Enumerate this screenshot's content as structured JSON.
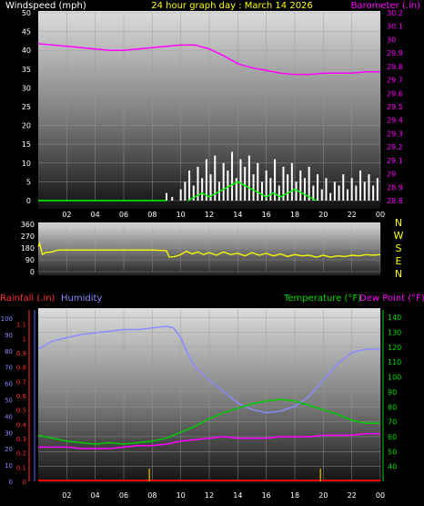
{
  "header": {
    "left_label": "Windspeed (mph)",
    "center_label": "24 hour graph day : March 14 2026",
    "right_label": "Barometer (.in)"
  },
  "colors": {
    "wind": "#ffffff",
    "gust": "#00ff00",
    "barometer": "#ff00ff",
    "direction": "#ffff00",
    "humidity": "#8a8aff",
    "temperature": "#00cc00",
    "dewpoint": "#ff00ff",
    "rain": "#ff0000",
    "rain_tick": "#c8a000",
    "text": "#ffffff"
  },
  "compass": [
    "N",
    "W",
    "S",
    "E",
    "N"
  ],
  "bottom_header": {
    "rainfall_label": "Rainfall (.in)",
    "humidity_label": "Humidity",
    "temperature_label": "Temperature (°F)",
    "dewpoint_label": "Dew Point (°F)"
  },
  "chart_data": [
    {
      "type": "line",
      "title": "24 hour graph day : March 14 2026",
      "x_tick_labels": [
        "02",
        "04",
        "06",
        "08",
        "10",
        "12",
        "14",
        "16",
        "18",
        "20",
        "22",
        "00"
      ],
      "xlim": [
        0,
        24
      ],
      "ylabel": "Windspeed (mph)",
      "ylim": [
        0,
        50
      ],
      "y_ticks": [
        0,
        5,
        10,
        15,
        20,
        25,
        30,
        35,
        40,
        45,
        50
      ],
      "y2label": "Barometer (.in)",
      "y2lim": [
        28.8,
        30.2
      ],
      "y2_ticks": [
        "28.8",
        "28.9",
        "29",
        "29.1",
        "29.2",
        "29.3",
        "29.4",
        "29.5",
        "29.6",
        "29.7",
        "29.8",
        "29.9",
        "30",
        "30.1",
        "30.2"
      ],
      "grid": true,
      "series": [
        {
          "name": "Windspeed (mph)",
          "axis": "left",
          "x": [
            0,
            7,
            9.0,
            9.4,
            10.0,
            10.3,
            10.6,
            10.9,
            11.2,
            11.5,
            11.8,
            12.1,
            12.4,
            12.7,
            13.0,
            13.3,
            13.6,
            13.9,
            14.2,
            14.5,
            14.8,
            15.1,
            15.4,
            15.7,
            16.0,
            16.3,
            16.6,
            16.9,
            17.2,
            17.5,
            17.8,
            18.1,
            18.4,
            18.7,
            19.0,
            19.3,
            19.6,
            19.9,
            20.2,
            20.5,
            20.8,
            21.1,
            21.4,
            21.7,
            22.0,
            22.3,
            22.6,
            22.9,
            23.2,
            23.5,
            23.8
          ],
          "values": [
            0,
            0,
            2,
            1,
            3,
            5,
            8,
            4,
            9,
            6,
            11,
            7,
            12,
            5,
            10,
            8,
            13,
            6,
            11,
            9,
            12,
            7,
            10,
            5,
            8,
            6,
            11,
            4,
            9,
            7,
            10,
            5,
            8,
            6,
            9,
            4,
            7,
            3,
            6,
            2,
            5,
            4,
            7,
            3,
            6,
            4,
            8,
            5,
            7,
            4,
            6
          ]
        },
        {
          "name": "Gust",
          "axis": "left",
          "x": [
            10.5,
            11,
            11.5,
            12,
            12.5,
            13,
            13.5,
            14,
            14.5,
            15,
            15.5,
            16,
            16.5,
            17,
            17.5,
            18,
            18.5,
            19,
            19.5
          ],
          "values": [
            0,
            1,
            2,
            1,
            2,
            3,
            4,
            5,
            4,
            3,
            2,
            1,
            2,
            1,
            2,
            3,
            2,
            1,
            0
          ]
        },
        {
          "name": "Barometer (.in)",
          "axis": "right",
          "x": [
            0,
            1,
            2,
            3,
            4,
            5,
            6,
            7,
            8,
            9,
            10,
            11,
            12,
            13,
            14,
            15,
            16,
            17,
            18,
            19,
            20,
            21,
            22,
            23,
            24
          ],
          "values": [
            29.97,
            29.96,
            29.95,
            29.94,
            29.93,
            29.92,
            29.92,
            29.93,
            29.94,
            29.95,
            29.96,
            29.96,
            29.93,
            29.88,
            29.82,
            29.79,
            29.77,
            29.75,
            29.74,
            29.74,
            29.75,
            29.75,
            29.75,
            29.76,
            29.76
          ]
        }
      ]
    },
    {
      "type": "line",
      "x_tick_labels": [],
      "xlim": [
        0,
        24
      ],
      "ylim": [
        0,
        360
      ],
      "y_ticks": [
        0,
        90,
        180,
        270,
        360
      ],
      "grid": true,
      "series": [
        {
          "name": "Wind direction",
          "x": [
            0,
            0.1,
            0.3,
            0.5,
            1.0,
            1.2,
            1.5,
            3,
            5,
            7,
            8,
            9.0,
            9.2,
            9.6,
            10.0,
            10.4,
            10.8,
            11.2,
            11.6,
            12,
            12.5,
            13,
            13.5,
            14,
            14.5,
            15,
            15.5,
            16,
            16.5,
            17,
            17.5,
            18,
            18.5,
            19,
            19.5,
            20,
            20.5,
            21,
            21.5,
            22,
            22.5,
            23,
            23.5,
            24
          ],
          "values": [
            190,
            215,
            130,
            145,
            150,
            160,
            165,
            165,
            165,
            165,
            165,
            160,
            110,
            115,
            130,
            155,
            135,
            150,
            130,
            145,
            125,
            150,
            130,
            140,
            120,
            145,
            125,
            140,
            120,
            135,
            115,
            130,
            120,
            125,
            110,
            125,
            110,
            120,
            115,
            125,
            120,
            130,
            125,
            130
          ]
        }
      ]
    },
    {
      "type": "line",
      "x_tick_labels": [
        "02",
        "04",
        "06",
        "08",
        "10",
        "12",
        "14",
        "16",
        "18",
        "20",
        "22",
        "00"
      ],
      "xlim": [
        0,
        24
      ],
      "ylabel": "Rainfall (.in)",
      "ylim": [
        0,
        1.2
      ],
      "y_ticks": [
        "0",
        "0.1",
        "0.2",
        "0.3",
        "0.4",
        "0.5",
        "0.6",
        "0.7",
        "0.8",
        "0.9",
        "1",
        "1.1"
      ],
      "humidity_ticks": [
        0,
        10,
        20,
        30,
        40,
        50,
        60,
        70,
        80,
        90,
        100
      ],
      "y2label": "Temperature (°F)",
      "y2lim": [
        30,
        145
      ],
      "y2_ticks": [
        40,
        50,
        60,
        70,
        80,
        90,
        100,
        110,
        120,
        130,
        140
      ],
      "grid": true,
      "series": [
        {
          "name": "Humidity",
          "axis": "humidity",
          "x": [
            0,
            1,
            2,
            3,
            4,
            5,
            6,
            7,
            8,
            9,
            9.5,
            10,
            10.5,
            11,
            12,
            13,
            14,
            15,
            16,
            17,
            18,
            19,
            20,
            21,
            22,
            23,
            24
          ],
          "values": [
            81,
            86,
            88,
            90,
            91,
            92,
            93,
            93,
            94,
            95,
            94,
            88,
            78,
            70,
            62,
            55,
            48,
            44,
            42,
            43,
            46,
            52,
            62,
            72,
            79,
            81,
            81
          ]
        },
        {
          "name": "Temperature (°F)",
          "axis": "right",
          "x": [
            0,
            1,
            2,
            3,
            4,
            5,
            6,
            7,
            8,
            9,
            10,
            11,
            12,
            13,
            14,
            15,
            16,
            17,
            18,
            19,
            20,
            21,
            22,
            23,
            24
          ],
          "values": [
            61,
            59,
            57,
            56,
            55,
            56,
            55,
            56,
            57,
            59,
            63,
            67,
            72,
            76,
            79,
            82,
            84,
            85,
            84,
            81,
            78,
            75,
            71,
            69,
            69
          ]
        },
        {
          "name": "Dew Point (°F)",
          "axis": "right",
          "x": [
            0,
            1,
            2,
            3,
            4,
            5,
            6,
            7,
            8,
            9,
            10,
            11,
            12,
            13,
            14,
            15,
            16,
            17,
            18,
            19,
            20,
            21,
            22,
            23,
            24
          ],
          "values": [
            53,
            53,
            53,
            52,
            52,
            52,
            53,
            54,
            54,
            55,
            57,
            58,
            59,
            60,
            59,
            59,
            59,
            60,
            60,
            60,
            61,
            61,
            61,
            62,
            62
          ]
        },
        {
          "name": "Rainfall (.in)",
          "axis": "left",
          "x": [
            0,
            24
          ],
          "values": [
            0,
            0
          ]
        }
      ]
    }
  ]
}
